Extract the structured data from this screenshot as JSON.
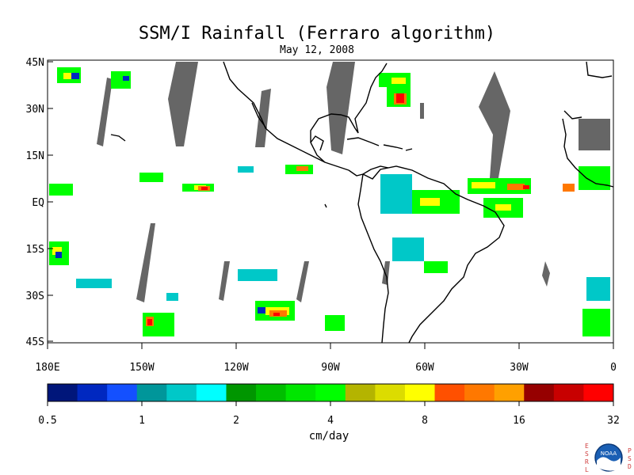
{
  "header": {
    "title": "SSM/I Rainfall (Ferraro algorithm)",
    "date": "May 12, 2008"
  },
  "map": {
    "lat_labels": [
      "45N",
      "30N",
      "15N",
      "EQ",
      "15S",
      "30S",
      "45S"
    ],
    "lon_labels": [
      "180E",
      "150W",
      "120W",
      "90W",
      "60W",
      "30W",
      "0"
    ],
    "missing_swath_color": "#666666",
    "coastline_color": "#000000"
  },
  "colorbar": {
    "colors": [
      "#00167a",
      "#0028c0",
      "#1450ff",
      "#00969a",
      "#00c8c8",
      "#00ffff",
      "#009600",
      "#00be00",
      "#00e600",
      "#00ff00",
      "#b4b400",
      "#dcdc00",
      "#ffff00",
      "#ff5000",
      "#ff7800",
      "#ffa000",
      "#960000",
      "#c80000",
      "#ff0000"
    ],
    "tick_labels": [
      "0.5",
      "1",
      "2",
      "4",
      "8",
      "16",
      "32"
    ],
    "unit": "cm/day"
  },
  "logo": {
    "left_text": "ESRL",
    "right_text": "PSD",
    "center_text": "NOAA"
  }
}
